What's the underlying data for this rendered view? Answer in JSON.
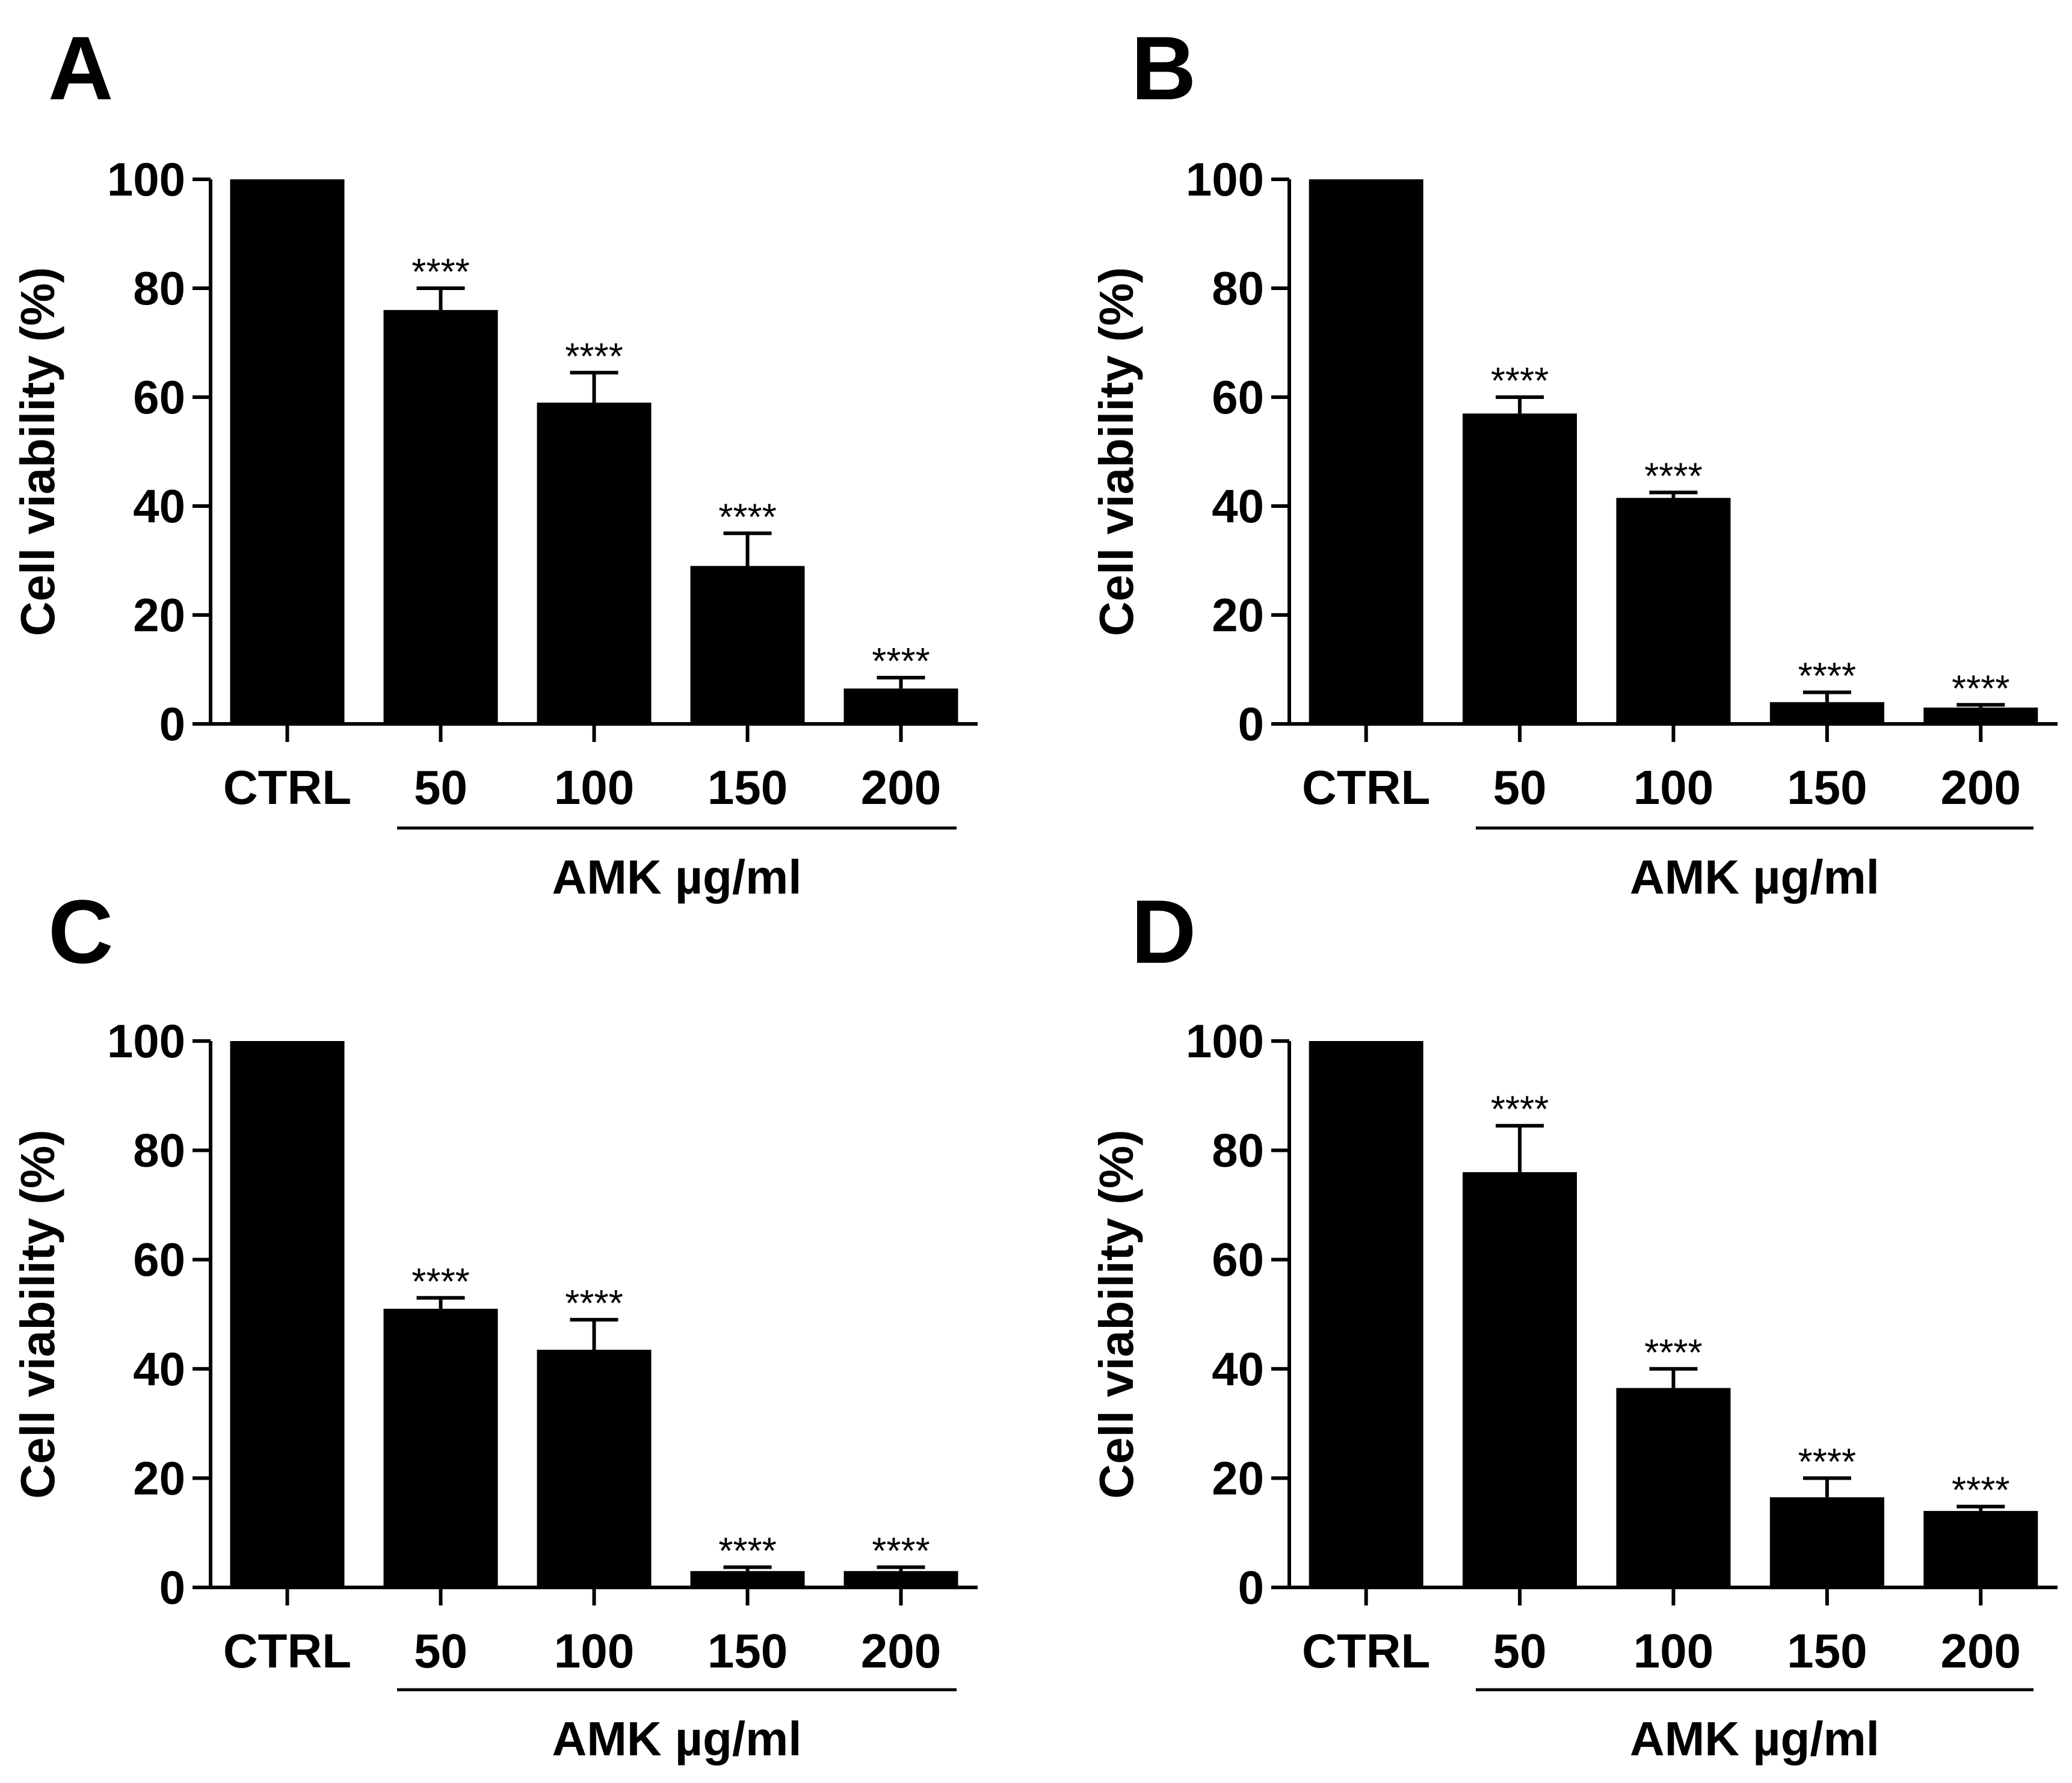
{
  "figure": {
    "panels": [
      {
        "letter": "A"
      },
      {
        "letter": "B"
      },
      {
        "letter": "C"
      },
      {
        "letter": "D"
      }
    ]
  },
  "chart_data": [
    {
      "panel": "A",
      "type": "bar",
      "categories": [
        "CTRL",
        "50",
        "100",
        "150",
        "200"
      ],
      "values": [
        100,
        76,
        59,
        29,
        6.5
      ],
      "errors": [
        0,
        4,
        5.5,
        6,
        2
      ],
      "significance": [
        "",
        "****",
        "****",
        "****",
        "****"
      ],
      "ylabel": "Cell viability (%)",
      "xlabel": "AMK µg/ml",
      "group_label": "AMK µg/ml",
      "ylim": [
        0,
        100
      ],
      "yticks": [
        0,
        20,
        40,
        60,
        80,
        100
      ],
      "bar_color": "#000000"
    },
    {
      "panel": "B",
      "type": "bar",
      "categories": [
        "CTRL",
        "50",
        "100",
        "150",
        "200"
      ],
      "values": [
        100,
        57,
        41.5,
        4,
        3
      ],
      "errors": [
        0,
        3,
        1,
        1.8,
        0.5
      ],
      "significance": [
        "",
        "****",
        "****",
        "****",
        "****"
      ],
      "ylabel": "Cell viability (%)",
      "xlabel": "AMK µg/ml",
      "group_label": "AMK µg/ml",
      "ylim": [
        0,
        100
      ],
      "yticks": [
        0,
        20,
        40,
        60,
        80,
        100
      ],
      "bar_color": "#000000"
    },
    {
      "panel": "C",
      "type": "bar",
      "categories": [
        "CTRL",
        "50",
        "100",
        "150",
        "200"
      ],
      "values": [
        100,
        51,
        43.5,
        3,
        3
      ],
      "errors": [
        0,
        2,
        5.5,
        0.7,
        0.7
      ],
      "significance": [
        "",
        "****",
        "****",
        "****",
        "****"
      ],
      "ylabel": "Cell viability (%)",
      "xlabel": "AMK µg/ml",
      "group_label": "AMK µg/ml",
      "ylim": [
        0,
        100
      ],
      "yticks": [
        0,
        20,
        40,
        60,
        80,
        100
      ],
      "bar_color": "#000000"
    },
    {
      "panel": "D",
      "type": "bar",
      "categories": [
        "CTRL",
        "50",
        "100",
        "150",
        "200"
      ],
      "values": [
        100,
        76,
        36.5,
        16.5,
        14
      ],
      "errors": [
        0,
        8.5,
        3.5,
        3.5,
        0.8
      ],
      "significance": [
        "",
        "****",
        "****",
        "****",
        "****"
      ],
      "ylabel": "Cell viability (%)",
      "xlabel": "AMK µg/ml",
      "group_label": "AMK µg/ml",
      "ylim": [
        0,
        100
      ],
      "yticks": [
        0,
        20,
        40,
        60,
        80,
        100
      ],
      "bar_color": "#000000"
    }
  ]
}
